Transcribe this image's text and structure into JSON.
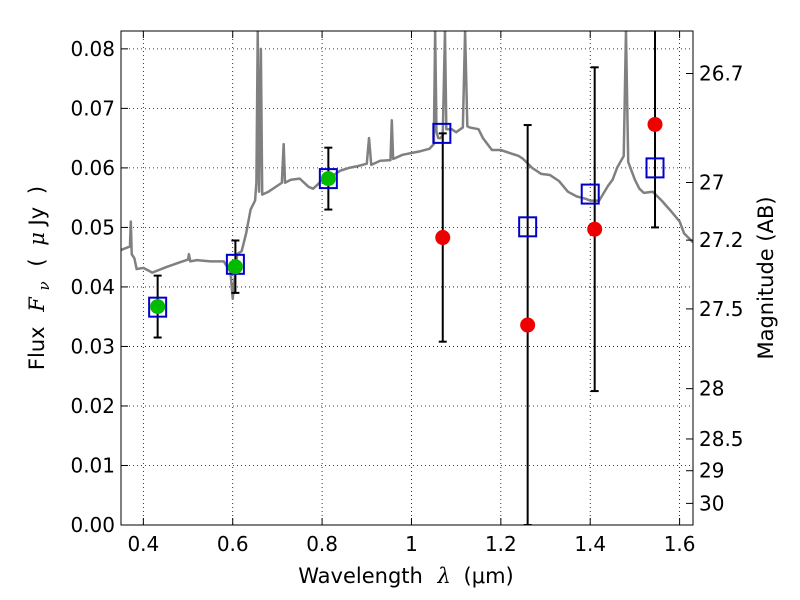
{
  "chart_data": {
    "type": "scatter",
    "xlabel_text": "Wavelength",
    "xlabel_symbol": "λ",
    "xlabel_unit": "(μm)",
    "ylabel_text": "Flux",
    "ylabel_symbol": "F",
    "ylabel_subscript": "ν",
    "ylabel_unit_open": "(",
    "ylabel_unit_mu": "μ",
    "ylabel_unit": "Jy",
    "ylabel_unit_close": ")",
    "y2label": "Magnitude (AB)",
    "xlim": [
      0.35,
      1.63
    ],
    "ylim": [
      0.0,
      0.083
    ],
    "x_ticks": [
      0.4,
      0.6,
      0.8,
      1.0,
      1.2,
      1.4,
      1.6
    ],
    "x_tick_labels": [
      "0.4",
      "0.6",
      "0.8",
      "1",
      "1.2",
      "1.4",
      "1.6"
    ],
    "y_ticks": [
      0.0,
      0.01,
      0.02,
      0.03,
      0.04,
      0.05,
      0.06,
      0.07,
      0.08
    ],
    "y_tick_labels": [
      "0.00",
      "0.01",
      "0.02",
      "0.03",
      "0.04",
      "0.05",
      "0.06",
      "0.07",
      "0.08"
    ],
    "mag_ticks": [
      26.7,
      27.0,
      27.2,
      27.5,
      28.0,
      28.5,
      29.0,
      30.0
    ],
    "mag_tick_labels": [
      "26.7",
      "27",
      "27.2",
      "27.5",
      "28",
      "28.5",
      "29",
      "30"
    ],
    "grid": true,
    "colors": {
      "model": "#808080",
      "green": "#00bb00",
      "red": "#ee0000",
      "square": "#0000cc",
      "errorbar": "#000000"
    },
    "series": [
      {
        "kind": "observed",
        "points": [
          {
            "x": 0.432,
            "y": 0.0367,
            "yerr_low": 0.0052,
            "yerr_high": 0.0052,
            "color": "green"
          },
          {
            "x": 0.606,
            "y": 0.0434,
            "yerr_low": 0.0044,
            "yerr_high": 0.0044,
            "color": "green"
          },
          {
            "x": 0.814,
            "y": 0.0582,
            "yerr_low": 0.0052,
            "yerr_high": 0.0052,
            "color": "green"
          },
          {
            "x": 1.07,
            "y": 0.0483,
            "yerr_low": 0.0175,
            "yerr_high": 0.0175,
            "color": "red"
          },
          {
            "x": 1.26,
            "y": 0.0336,
            "yerr_low": 0.0336,
            "yerr_high": 0.0336,
            "color": "red"
          },
          {
            "x": 1.41,
            "y": 0.0497,
            "yerr_low": 0.0272,
            "yerr_high": 0.0272,
            "color": "red"
          },
          {
            "x": 1.545,
            "y": 0.0673,
            "yerr_low": 0.0173,
            "yerr_high": 0.0173,
            "color": "red"
          }
        ]
      },
      {
        "kind": "model-photometry",
        "points": [
          {
            "x": 0.432,
            "y": 0.0366
          },
          {
            "x": 0.606,
            "y": 0.0438
          },
          {
            "x": 0.814,
            "y": 0.0582
          },
          {
            "x": 1.068,
            "y": 0.0658
          },
          {
            "x": 1.26,
            "y": 0.0501
          },
          {
            "x": 1.4,
            "y": 0.0556
          },
          {
            "x": 1.545,
            "y": 0.06
          }
        ]
      },
      {
        "kind": "model-spectrum",
        "points": [
          [
            0.35,
            0.0462
          ],
          [
            0.37,
            0.0468
          ],
          [
            0.372,
            0.051
          ],
          [
            0.374,
            0.0455
          ],
          [
            0.38,
            0.0448
          ],
          [
            0.385,
            0.043
          ],
          [
            0.4,
            0.0432
          ],
          [
            0.42,
            0.0424
          ],
          [
            0.45,
            0.0433
          ],
          [
            0.48,
            0.0441
          ],
          [
            0.5,
            0.0446
          ],
          [
            0.502,
            0.0455
          ],
          [
            0.505,
            0.0443
          ],
          [
            0.52,
            0.0445
          ],
          [
            0.55,
            0.0443
          ],
          [
            0.58,
            0.0443
          ],
          [
            0.595,
            0.0425
          ],
          [
            0.6,
            0.038
          ],
          [
            0.605,
            0.042
          ],
          [
            0.61,
            0.0455
          ],
          [
            0.62,
            0.046
          ],
          [
            0.63,
            0.049
          ],
          [
            0.64,
            0.053
          ],
          [
            0.65,
            0.0545
          ],
          [
            0.653,
            0.0575
          ],
          [
            0.656,
            0.083
          ],
          [
            0.659,
            0.056
          ],
          [
            0.663,
            0.08
          ],
          [
            0.666,
            0.0555
          ],
          [
            0.68,
            0.056
          ],
          [
            0.7,
            0.057
          ],
          [
            0.71,
            0.0575
          ],
          [
            0.714,
            0.064
          ],
          [
            0.717,
            0.0575
          ],
          [
            0.73,
            0.058
          ],
          [
            0.75,
            0.0582
          ],
          [
            0.77,
            0.0568
          ],
          [
            0.78,
            0.0565
          ],
          [
            0.79,
            0.0572
          ],
          [
            0.8,
            0.058
          ],
          [
            0.82,
            0.0585
          ],
          [
            0.83,
            0.059
          ],
          [
            0.84,
            0.0595
          ],
          [
            0.86,
            0.06
          ],
          [
            0.88,
            0.0603
          ],
          [
            0.9,
            0.0607
          ],
          [
            0.905,
            0.065
          ],
          [
            0.91,
            0.0605
          ],
          [
            0.93,
            0.0612
          ],
          [
            0.953,
            0.0613
          ],
          [
            0.956,
            0.068
          ],
          [
            0.959,
            0.0615
          ],
          [
            0.98,
            0.0622
          ],
          [
            1.0,
            0.0625
          ],
          [
            1.02,
            0.0628
          ],
          [
            1.04,
            0.0632
          ],
          [
            1.05,
            0.064
          ],
          [
            1.053,
            0.083
          ],
          [
            1.056,
            0.066
          ],
          [
            1.06,
            0.065
          ],
          [
            1.065,
            0.065
          ],
          [
            1.07,
            0.0655
          ],
          [
            1.075,
            0.083
          ],
          [
            1.078,
            0.0665
          ],
          [
            1.09,
            0.0665
          ],
          [
            1.1,
            0.066
          ],
          [
            1.115,
            0.0668
          ],
          [
            1.12,
            0.083
          ],
          [
            1.125,
            0.067
          ],
          [
            1.13,
            0.0668
          ],
          [
            1.15,
            0.0665
          ],
          [
            1.16,
            0.065
          ],
          [
            1.18,
            0.063
          ],
          [
            1.2,
            0.063
          ],
          [
            1.22,
            0.0625
          ],
          [
            1.24,
            0.062
          ],
          [
            1.25,
            0.0615
          ],
          [
            1.27,
            0.06
          ],
          [
            1.29,
            0.059
          ],
          [
            1.31,
            0.0588
          ],
          [
            1.33,
            0.0578
          ],
          [
            1.35,
            0.056
          ],
          [
            1.37,
            0.0552
          ],
          [
            1.39,
            0.0548
          ],
          [
            1.4,
            0.0545
          ],
          [
            1.42,
            0.0545
          ],
          [
            1.44,
            0.057
          ],
          [
            1.45,
            0.058
          ],
          [
            1.46,
            0.06
          ],
          [
            1.475,
            0.062
          ],
          [
            1.48,
            0.083
          ],
          [
            1.485,
            0.061
          ],
          [
            1.5,
            0.058
          ],
          [
            1.51,
            0.0565
          ],
          [
            1.52,
            0.0558
          ],
          [
            1.54,
            0.056
          ],
          [
            1.56,
            0.0545
          ],
          [
            1.58,
            0.0528
          ],
          [
            1.6,
            0.051
          ],
          [
            1.61,
            0.049
          ],
          [
            1.63,
            0.0475
          ]
        ]
      }
    ]
  }
}
